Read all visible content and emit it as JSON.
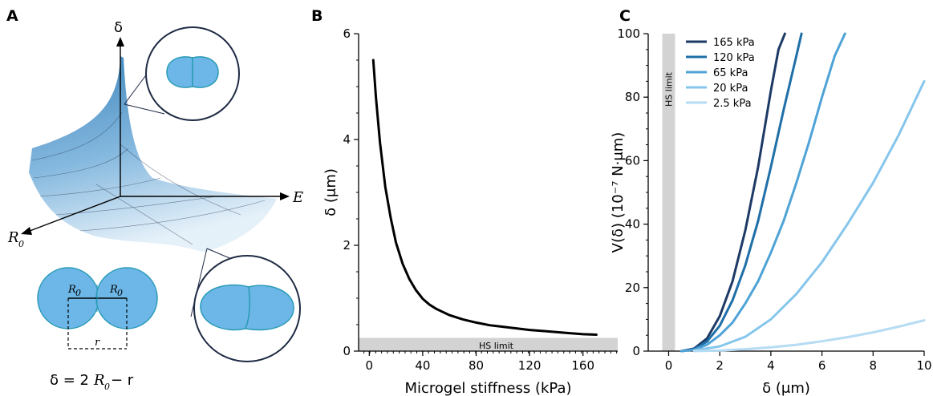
{
  "panels": {
    "a": "A",
    "b": "B",
    "c": "C"
  },
  "panel_a": {
    "axis_delta": "δ",
    "axis_E": "E",
    "axis_R": "R",
    "axis_R_sub": "0",
    "label_R0_left": "R",
    "label_R0_right": "R",
    "label_sub": "0",
    "label_r": "r",
    "formula_lhs": "δ = 2",
    "formula_R": "R",
    "formula_sub": "0",
    "formula_rhs": " − r",
    "colors": {
      "surface_dark": "#2f7cb6",
      "surface_light": "#d8e8f5",
      "cell_fill": "#6db7e8",
      "cell_stroke": "#2a9bb6",
      "circle_stroke": "#1f2a44"
    }
  },
  "chart_data": [
    {
      "type": "line",
      "panel": "B",
      "xlabel": "Microgel stiffness (kPa)",
      "ylabel": "δ (μm)",
      "xlim": [
        -8,
        186
      ],
      "ylim": [
        0,
        6
      ],
      "xticks": [
        0,
        40,
        80,
        120,
        160
      ],
      "yticks": [
        0,
        2,
        4,
        6
      ],
      "series": [
        {
          "color": "#000000",
          "x": [
            3,
            5,
            8,
            12,
            16,
            20,
            25,
            30,
            35,
            40,
            45,
            50,
            60,
            70,
            80,
            90,
            100,
            110,
            120,
            130,
            140,
            150,
            160,
            170
          ],
          "y": [
            5.5,
            4.8,
            3.95,
            3.1,
            2.52,
            2.05,
            1.65,
            1.36,
            1.15,
            0.99,
            0.88,
            0.8,
            0.68,
            0.6,
            0.54,
            0.49,
            0.46,
            0.43,
            0.4,
            0.38,
            0.36,
            0.34,
            0.32,
            0.31
          ]
        }
      ],
      "band": {
        "label": "HS limit",
        "y0": 0,
        "y1": 0.25,
        "color": "#d3d3d3"
      },
      "grid": false
    },
    {
      "type": "line",
      "panel": "C",
      "xlabel": "δ (μm)",
      "ylabel": "V(δ) (10⁻⁷ N·μm)",
      "xlim": [
        -0.8,
        10
      ],
      "ylim": [
        0,
        100
      ],
      "xticks": [
        0,
        2,
        4,
        6,
        8,
        10
      ],
      "yticks": [
        0,
        20,
        40,
        60,
        80,
        100
      ],
      "band": {
        "label": "HS limit",
        "x0": -0.25,
        "x1": 0.25,
        "color": "#d3d3d3"
      },
      "legend_position": "top-left",
      "series": [
        {
          "name": "165 kPa",
          "color": "#1d3a66",
          "x": [
            0.5,
            1,
            1.5,
            2,
            2.5,
            3,
            3.5,
            4,
            4.3,
            4.55
          ],
          "y": [
            0,
            0.8,
            4,
            11,
            22,
            38,
            58,
            82,
            95,
            100
          ]
        },
        {
          "name": "120 kPa",
          "color": "#1f6fa8",
          "x": [
            0.5,
            1,
            1.5,
            2,
            2.5,
            3,
            3.5,
            4,
            4.5,
            5,
            5.2
          ],
          "y": [
            0,
            0.6,
            3,
            8,
            16,
            27,
            41,
            58,
            76,
            93,
            100
          ]
        },
        {
          "name": "65 kPa",
          "color": "#4fa3d6",
          "x": [
            0.5,
            1,
            1.5,
            2,
            2.5,
            3,
            3.5,
            4,
            4.5,
            5,
            5.5,
            6,
            6.5,
            6.9
          ],
          "y": [
            0,
            0.4,
            2,
            5,
            9,
            15,
            22,
            31,
            41,
            53,
            66,
            80,
            93,
            100
          ]
        },
        {
          "name": "20 kPa",
          "color": "#86c6ec",
          "x": [
            1,
            2,
            3,
            4,
            5,
            6,
            7,
            8,
            9,
            10
          ],
          "y": [
            0.2,
            1.5,
            4.5,
            10,
            18,
            28,
            40,
            53,
            68,
            85
          ]
        },
        {
          "name": "2.5 kPa",
          "color": "#b6dcf3",
          "x": [
            1,
            2,
            3,
            4,
            5,
            6,
            7,
            8,
            9,
            10
          ],
          "y": [
            0,
            0.2,
            0.6,
            1.2,
            2,
            3.1,
            4.4,
            5.9,
            7.7,
            9.7
          ]
        }
      ],
      "grid": false
    }
  ]
}
